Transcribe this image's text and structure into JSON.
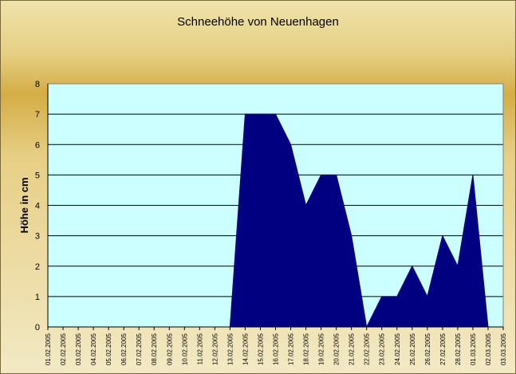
{
  "chart_data": {
    "type": "area",
    "title": "Schneehöhe von Neuenhagen",
    "ylabel": "Höhe in cm",
    "xlabel": "",
    "ylim": [
      0,
      8
    ],
    "yticks": [
      0,
      1,
      2,
      3,
      4,
      5,
      6,
      7,
      8
    ],
    "grid": true,
    "legend": "none",
    "colors": {
      "area": "#000080",
      "plot_bg": "#ccffff",
      "gridline": "#000000"
    },
    "categories": [
      "01.02.2005",
      "02.02.2005",
      "03.02.2005",
      "04.02.2005",
      "05.02.2005",
      "06.02.2005",
      "07.02.2005",
      "08.02.2005",
      "09.02.2005",
      "10.02.2005",
      "11.02.2005",
      "12.02.2005",
      "13.02.2005",
      "14.02.2005",
      "15.02.2005",
      "16.02.2005",
      "17.02.2005",
      "18.02.2005",
      "19.02.2005",
      "20.02.2005",
      "21.02.2005",
      "22.02.2005",
      "23.02.2005",
      "24.02.2005",
      "25.02.2005",
      "26.02.2005",
      "27.02.2005",
      "28.02.2005",
      "01.03.2005",
      "02.03.2005",
      "03.03.2005"
    ],
    "series": [
      {
        "values": [
          0,
          0,
          0,
          0,
          0,
          0,
          0,
          0,
          0,
          0,
          0,
          0,
          0,
          7,
          7,
          7,
          6,
          4,
          5,
          5,
          3,
          0,
          1,
          1,
          2,
          1,
          3,
          2,
          5,
          0,
          0
        ]
      }
    ]
  }
}
